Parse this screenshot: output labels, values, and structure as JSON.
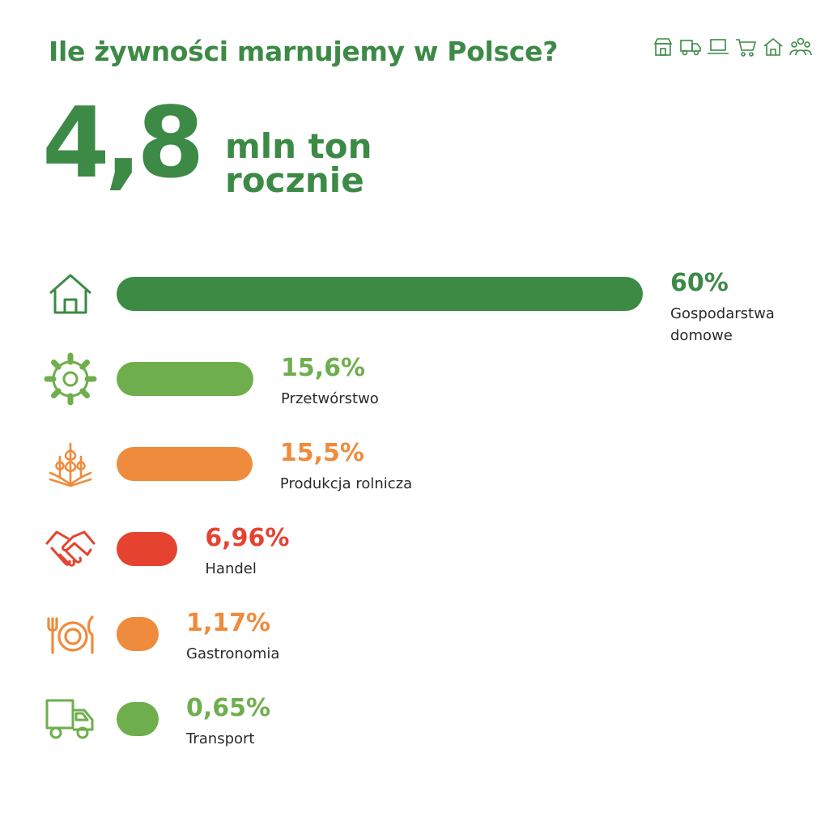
{
  "header": {
    "title": "Ile żywności marnujemy w Polsce?",
    "icons": [
      "store-icon",
      "truck-icon",
      "laptop-icon",
      "cart-icon",
      "house-icon",
      "people-icon"
    ]
  },
  "headline": {
    "value": "4,8",
    "unit_line1": "mln ton",
    "unit_line2": "rocznie"
  },
  "colors": {
    "dark_green": "#3d8a45",
    "light_green": "#6fae4d",
    "orange": "#ef8b3c",
    "red": "#e5432f"
  },
  "chart_data": {
    "type": "bar",
    "orientation": "horizontal",
    "categories": [
      "Gospodarstwa domowe",
      "Przetwórstwo",
      "Produkcja rolnicza",
      "Handel",
      "Gastronomia",
      "Transport"
    ],
    "values": [
      60,
      15.6,
      15.5,
      6.96,
      1.17,
      0.65
    ],
    "value_labels": [
      "60%",
      "15,6%",
      "15,5%",
      "6,96%",
      "1,17%",
      "0,65%"
    ],
    "bar_colors": [
      "#3d8a45",
      "#6fae4d",
      "#ef8b3c",
      "#e5432f",
      "#ef8b3c",
      "#6fae4d"
    ],
    "label_colors": [
      "#3c8a46",
      "#6fae4d",
      "#ef8b3c",
      "#e5432f",
      "#ef8b3c",
      "#6fae4d"
    ],
    "icons": [
      "house-icon",
      "gear-icon",
      "wheat-icon",
      "handshake-icon",
      "cutlery-icon",
      "truck-icon"
    ],
    "unit": "%",
    "title": "",
    "xlabel": "",
    "ylabel": "",
    "grid": false
  }
}
